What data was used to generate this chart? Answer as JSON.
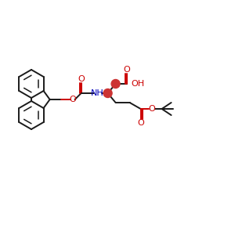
{
  "bg_color": "#ffffff",
  "bond_color": "#1a1a1a",
  "o_color": "#cc0000",
  "n_color": "#0000bb",
  "stereo_color": "#cc3333",
  "figsize": [
    3.0,
    3.0
  ],
  "dpi": 100,
  "xlim": [
    0,
    300
  ],
  "ylim": [
    0,
    300
  ]
}
